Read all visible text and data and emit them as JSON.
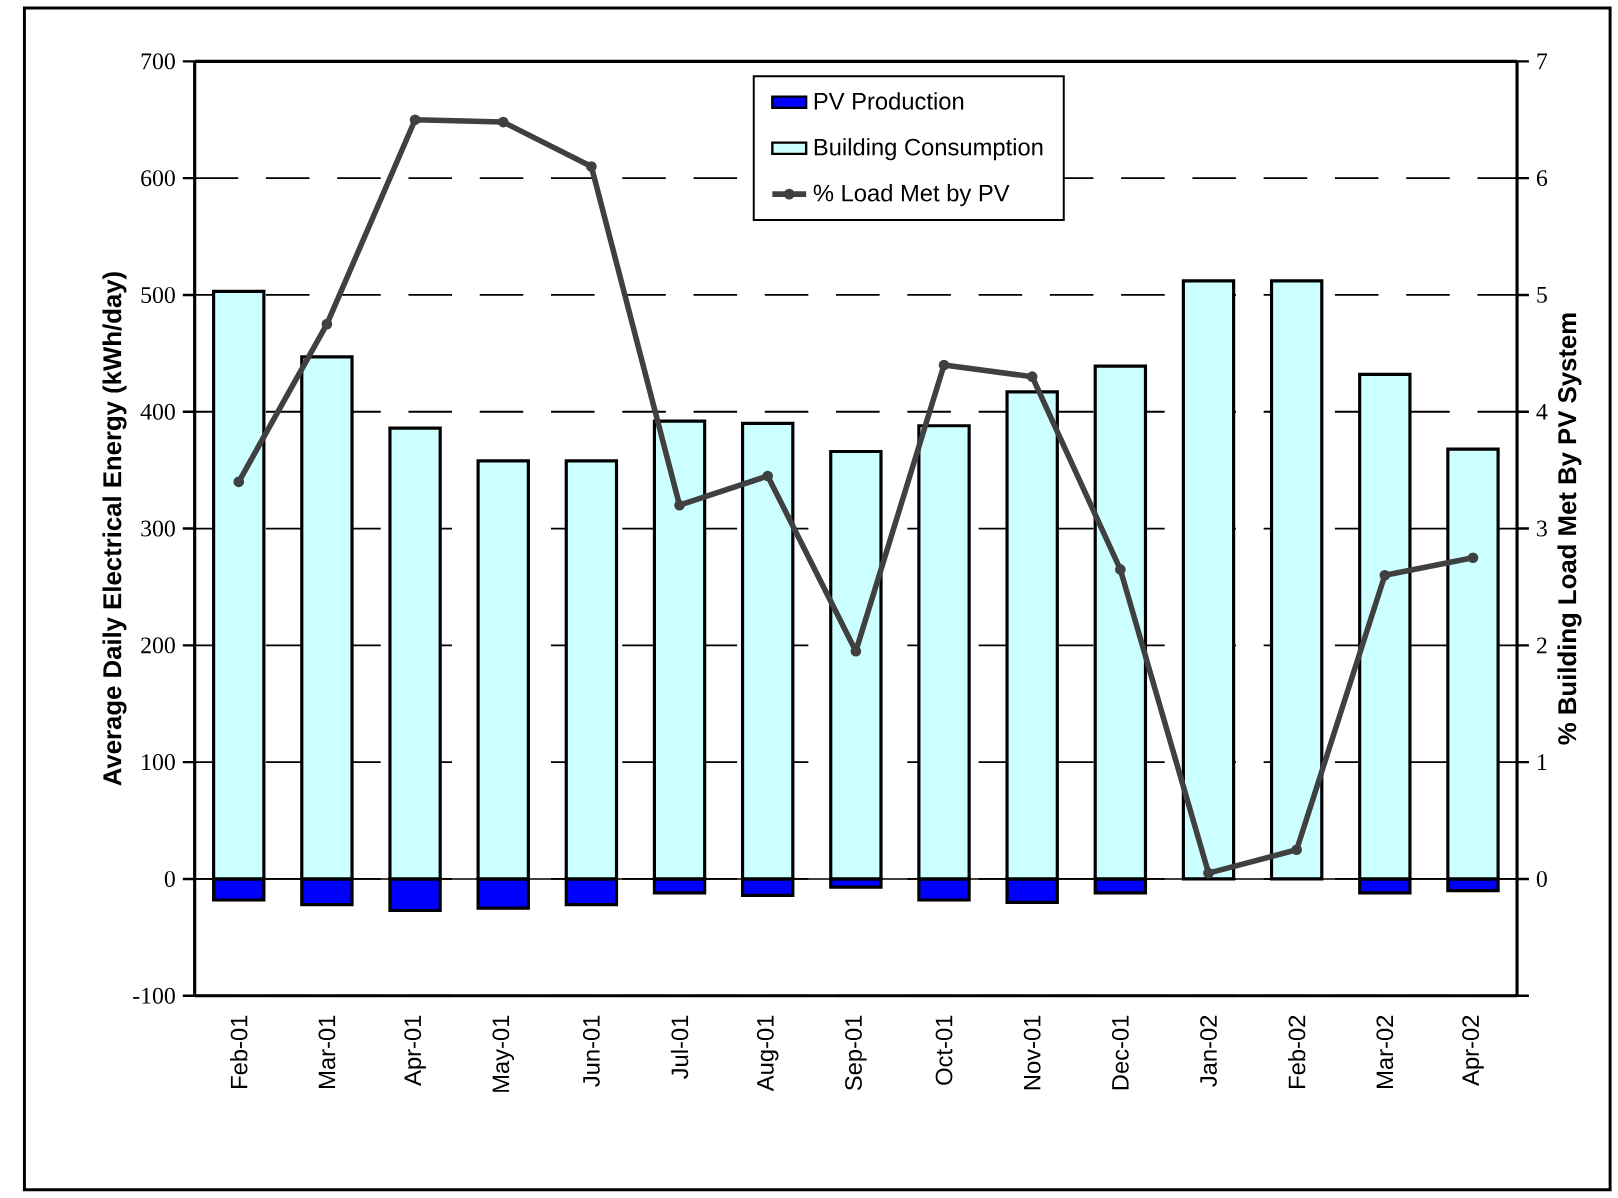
{
  "chart_data": {
    "type": "bar",
    "ylabel": "Average Daily Electrical Energy (kWh/day)",
    "y2label": "% Building Load Met By PV System",
    "categories": [
      "Feb-01",
      "Mar-01",
      "Apr-01",
      "May-01",
      "Jun-01",
      "Jul-01",
      "Aug-01",
      "Sep-01",
      "Oct-01",
      "Nov-01",
      "Dec-01",
      "Jan-02",
      "Feb-02",
      "Mar-02",
      "Apr-02"
    ],
    "series": [
      {
        "name": "PV Production",
        "color": "#0000ff",
        "values": [
          -18,
          -22,
          -27,
          -25,
          -22,
          -12,
          -14,
          -7,
          -18,
          -20,
          -12,
          null,
          null,
          -12,
          -10
        ]
      },
      {
        "name": "Building Consumption",
        "color": "#ccffff",
        "values": [
          503,
          447,
          386,
          358,
          358,
          392,
          390,
          366,
          388,
          417,
          439,
          512,
          512,
          432,
          368
        ]
      },
      {
        "name": "% Load Met by PV",
        "type": "line",
        "axis": "y2",
        "color": "#404040",
        "values": [
          3.4,
          4.75,
          6.5,
          6.48,
          6.1,
          3.2,
          3.45,
          1.95,
          4.4,
          4.3,
          2.65,
          0.05,
          0.25,
          2.6,
          2.75
        ]
      }
    ],
    "ylim": [
      -100,
      700
    ],
    "yticks": [
      -100,
      0,
      100,
      200,
      300,
      400,
      500,
      600,
      700
    ],
    "y2lim": [
      -1,
      7
    ],
    "y2ticks": [
      {
        "value": -1,
        "label": null
      },
      0,
      1,
      2,
      3,
      4,
      5,
      6,
      7
    ],
    "stacked": true,
    "grid": "y",
    "legend": "top",
    "marker": "circle",
    "line_style": "solid"
  }
}
